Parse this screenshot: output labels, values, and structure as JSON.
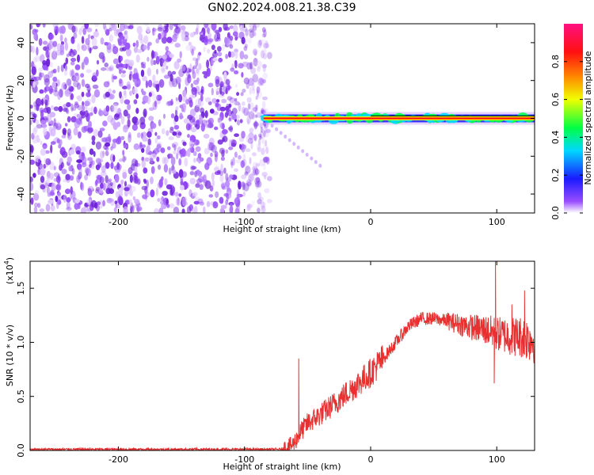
{
  "chart_data": [
    {
      "type": "heatmap",
      "title": "GN02.2024.008.21.38.C39",
      "xlabel": "Height of straight line (km)",
      "ylabel": "Frequency (Hz)",
      "xlim": [
        -270,
        130
      ],
      "ylim": [
        -50,
        50
      ],
      "x_ticks": [
        -200,
        -100,
        0,
        100
      ],
      "y_ticks": [
        -40,
        -20,
        0,
        20,
        40
      ],
      "x_tick_labels": [
        "-200",
        "-100",
        "0",
        "100"
      ],
      "y_tick_labels": [
        "-40",
        "-20",
        "0",
        "20",
        "40"
      ],
      "noise_region_x": [
        -270,
        -85
      ],
      "carrier_region_x": [
        -85,
        130
      ],
      "carrier_frequency": 0,
      "faint_drift_line": {
        "x": [
          -85,
          -40
        ],
        "y": [
          0,
          -25
        ]
      },
      "colorbar": {
        "label": "Normalized spectral amplitude",
        "range": [
          0.0,
          1.0
        ],
        "ticks": [
          0.0,
          0.2,
          0.4,
          0.6,
          0.8
        ],
        "tick_labels": [
          "0.0",
          "0.2",
          "0.4",
          "0.6",
          "0.8"
        ],
        "colors": [
          "#ffffff",
          "#9a4dff",
          "#1a1aff",
          "#00d8ff",
          "#00ff44",
          "#f0ff00",
          "#ff8800",
          "#ff1010",
          "#ff1080"
        ]
      }
    },
    {
      "type": "line",
      "xlabel": "Height of straight line (km)",
      "ylabel": "SNR (10 * v/v)",
      "y_scale_label": "(x10",
      "y_scale_exp": "4",
      "y_scale_close": ")",
      "xlim": [
        -270,
        130
      ],
      "ylim": [
        0,
        1.75
      ],
      "x_ticks": [
        -200,
        -100,
        0,
        100
      ],
      "y_ticks": [
        0.0,
        0.5,
        1.0,
        1.5
      ],
      "x_tick_labels": [
        "-200",
        "-100",
        "0",
        "100"
      ],
      "y_tick_labels": [
        "0.0",
        "0.5",
        "1.0",
        "1.5"
      ],
      "color": "#e83030",
      "series_envelope": {
        "x": [
          -270,
          -70,
          -62,
          -58,
          -55,
          -50,
          -40,
          -30,
          -20,
          -10,
          0,
          10,
          20,
          30,
          40,
          50,
          60,
          70,
          80,
          90,
          100,
          110,
          120,
          130
        ],
        "y": [
          0.01,
          0.01,
          0.05,
          0.12,
          0.18,
          0.25,
          0.33,
          0.42,
          0.52,
          0.62,
          0.72,
          0.85,
          1.0,
          1.15,
          1.22,
          1.22,
          1.2,
          1.17,
          1.14,
          1.12,
          1.08,
          1.06,
          1.05,
          1.02
        ]
      },
      "spikes": [
        {
          "x": -57,
          "y": 0.85
        },
        {
          "x": 99,
          "y": 1.75
        },
        {
          "x": 98,
          "y": 0.62
        },
        {
          "x": 122,
          "y": 1.48
        },
        {
          "x": 112,
          "y": 1.35
        }
      ]
    }
  ]
}
